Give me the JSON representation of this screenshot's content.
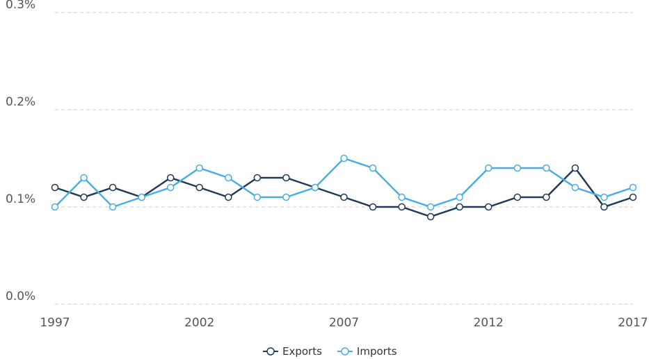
{
  "chart_data": {
    "type": "line",
    "x": [
      1997,
      1998,
      1999,
      2000,
      2001,
      2002,
      2003,
      2004,
      2005,
      2006,
      2007,
      2008,
      2009,
      2010,
      2011,
      2012,
      2013,
      2014,
      2015,
      2016,
      2017
    ],
    "xlim": [
      1997,
      2017
    ],
    "xticks": [
      1997,
      2002,
      2007,
      2012,
      2017
    ],
    "ylim": [
      0,
      0.3
    ],
    "yticks": [
      {
        "value": 0,
        "label": "0.0%"
      },
      {
        "value": 0.1,
        "label": "0.1%"
      },
      {
        "value": 0.2,
        "label": "0.2%"
      },
      {
        "value": 0.3,
        "label": "0.3%"
      }
    ],
    "grid": true,
    "legend": "bottom",
    "series": [
      {
        "name": "Exports",
        "color": "#1f3a5a",
        "values": [
          0.12,
          0.11,
          0.12,
          0.11,
          0.13,
          0.12,
          0.11,
          0.13,
          0.13,
          0.12,
          0.11,
          0.1,
          0.1,
          0.09,
          0.1,
          0.1,
          0.11,
          0.11,
          0.14,
          0.1,
          0.11
        ]
      },
      {
        "name": "Imports",
        "color": "#4aaee3",
        "values": [
          0.1,
          0.13,
          0.1,
          0.11,
          0.12,
          0.14,
          0.13,
          0.11,
          0.11,
          0.12,
          0.15,
          0.14,
          0.11,
          0.1,
          0.11,
          0.14,
          0.14,
          0.14,
          0.12,
          0.11,
          0.12
        ]
      }
    ]
  }
}
